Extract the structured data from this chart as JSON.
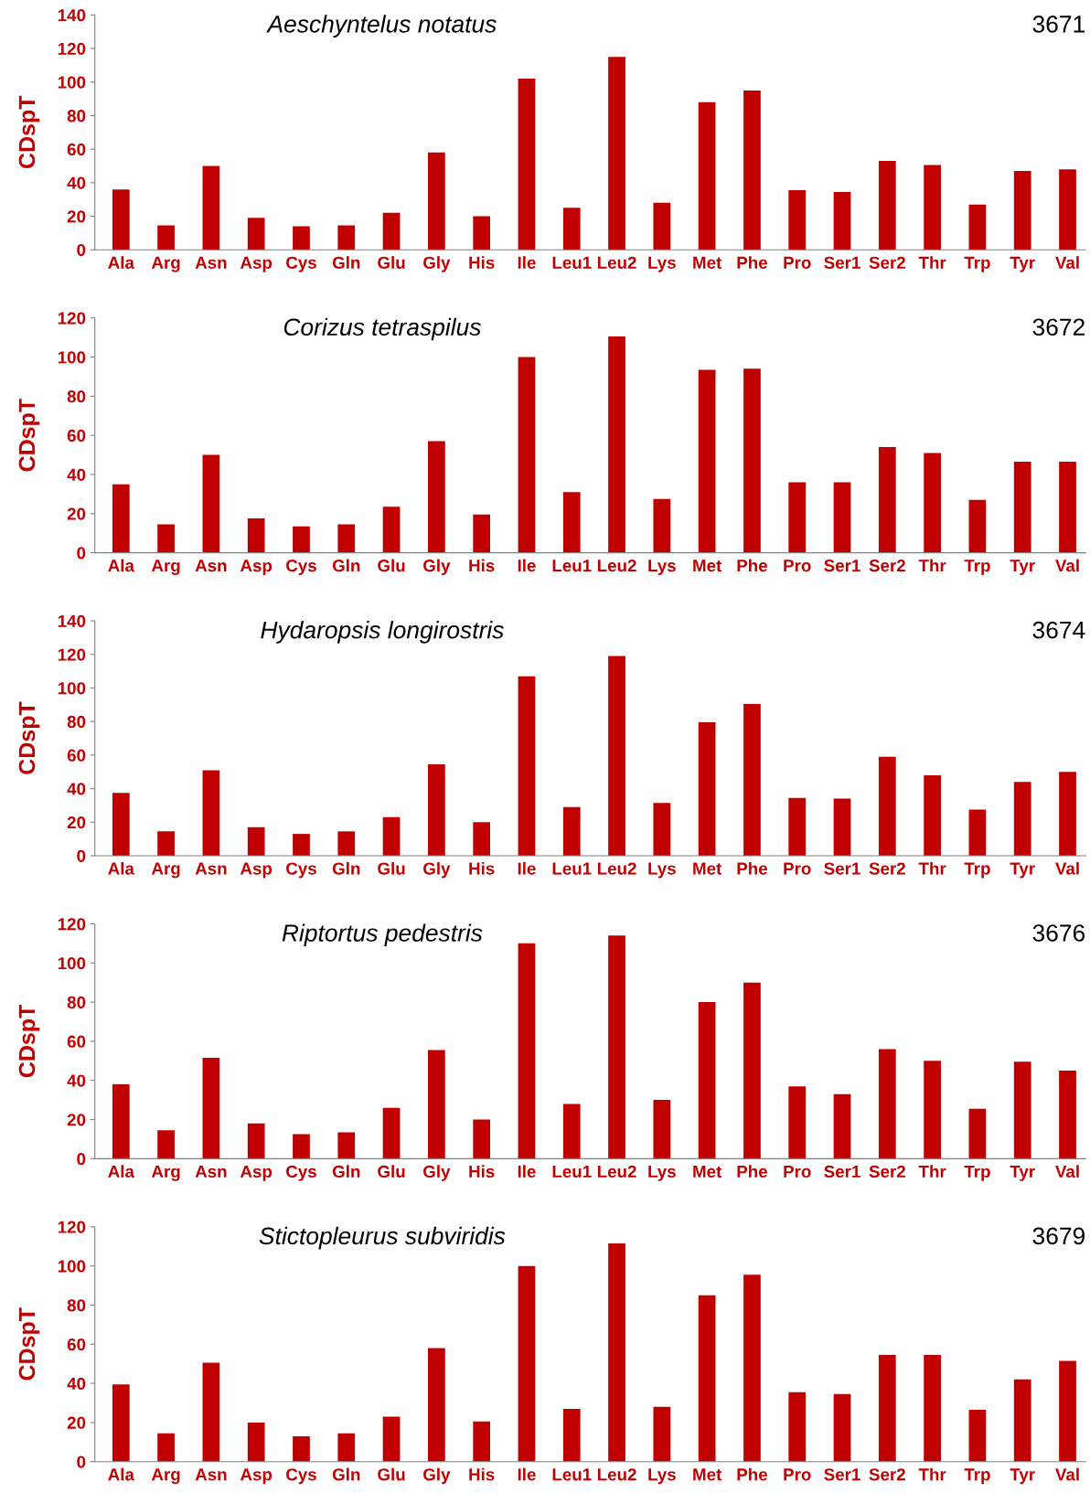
{
  "chart_data": [
    {
      "type": "bar",
      "title": "Aeschyntelus notatus",
      "ylabel": "CDspT",
      "annotations": [
        "3671"
      ],
      "color": "#c00000",
      "ylim": [
        0,
        140
      ],
      "yticks": [
        0,
        20,
        40,
        60,
        80,
        100,
        120,
        140
      ],
      "grid": false,
      "legend": false,
      "categories": [
        "Ala",
        "Arg",
        "Asn",
        "Asp",
        "Cys",
        "Gln",
        "Glu",
        "Gly",
        "His",
        "Ile",
        "Leu1",
        "Leu2",
        "Lys",
        "Met",
        "Phe",
        "Pro",
        "Ser1",
        "Ser2",
        "Thr",
        "Trp",
        "Tyr",
        "Val"
      ],
      "values": [
        36,
        14.5,
        50,
        19,
        14,
        14.5,
        22,
        58,
        20,
        102,
        25,
        115,
        28,
        88,
        95,
        35.5,
        34.5,
        53,
        50.5,
        27,
        47,
        48
      ]
    },
    {
      "type": "bar",
      "title": "Corizus tetraspilus",
      "ylabel": "CDspT",
      "annotations": [
        "3672"
      ],
      "color": "#c00000",
      "ylim": [
        0,
        120
      ],
      "yticks": [
        0,
        20,
        40,
        60,
        80,
        100,
        120
      ],
      "grid": false,
      "legend": false,
      "categories": [
        "Ala",
        "Arg",
        "Asn",
        "Asp",
        "Cys",
        "Gln",
        "Glu",
        "Gly",
        "His",
        "Ile",
        "Leu1",
        "Leu2",
        "Lys",
        "Met",
        "Phe",
        "Pro",
        "Ser1",
        "Ser2",
        "Thr",
        "Trp",
        "Tyr",
        "Val"
      ],
      "values": [
        35,
        14.5,
        50,
        17.5,
        13.5,
        14.5,
        23.5,
        57,
        19.5,
        100,
        31,
        110.5,
        27.5,
        93.5,
        94,
        36,
        36,
        54,
        51,
        27,
        46.5,
        46.5
      ]
    },
    {
      "type": "bar",
      "title": "Hydaropsis longirostris",
      "ylabel": "CDspT",
      "annotations": [
        "3674"
      ],
      "color": "#c00000",
      "ylim": [
        0,
        140
      ],
      "yticks": [
        0,
        20,
        40,
        60,
        80,
        100,
        120,
        140
      ],
      "grid": false,
      "legend": false,
      "categories": [
        "Ala",
        "Arg",
        "Asn",
        "Asp",
        "Cys",
        "Gln",
        "Glu",
        "Gly",
        "His",
        "Ile",
        "Leu1",
        "Leu2",
        "Lys",
        "Met",
        "Phe",
        "Pro",
        "Ser1",
        "Ser2",
        "Thr",
        "Trp",
        "Tyr",
        "Val"
      ],
      "values": [
        37.5,
        14.5,
        51,
        17,
        13,
        14.5,
        23,
        54.5,
        20,
        107,
        29,
        119,
        31.5,
        79.5,
        90.5,
        34.5,
        34,
        59,
        48,
        27.5,
        44,
        50
      ]
    },
    {
      "type": "bar",
      "title": "Riptortus pedestris",
      "ylabel": "CDspT",
      "annotations": [
        "3676"
      ],
      "color": "#c00000",
      "ylim": [
        0,
        120
      ],
      "yticks": [
        0,
        20,
        40,
        60,
        80,
        100,
        120
      ],
      "grid": false,
      "legend": false,
      "categories": [
        "Ala",
        "Arg",
        "Asn",
        "Asp",
        "Cys",
        "Gln",
        "Glu",
        "Gly",
        "His",
        "Ile",
        "Leu1",
        "Leu2",
        "Lys",
        "Met",
        "Phe",
        "Pro",
        "Ser1",
        "Ser2",
        "Thr",
        "Trp",
        "Tyr",
        "Val"
      ],
      "values": [
        38,
        14.5,
        51.5,
        18,
        12.5,
        13.5,
        26,
        55.5,
        20,
        110,
        28,
        114,
        30,
        80,
        90,
        37,
        33,
        56,
        50,
        25.5,
        49.5,
        45
      ]
    },
    {
      "type": "bar",
      "title": "Stictopleurus subviridis",
      "ylabel": "CDspT",
      "annotations": [
        "3679"
      ],
      "color": "#c00000",
      "ylim": [
        0,
        120
      ],
      "yticks": [
        0,
        20,
        40,
        60,
        80,
        100,
        120
      ],
      "grid": false,
      "legend": false,
      "categories": [
        "Ala",
        "Arg",
        "Asn",
        "Asp",
        "Cys",
        "Gln",
        "Glu",
        "Gly",
        "His",
        "Ile",
        "Leu1",
        "Leu2",
        "Lys",
        "Met",
        "Phe",
        "Pro",
        "Ser1",
        "Ser2",
        "Thr",
        "Trp",
        "Tyr",
        "Val"
      ],
      "values": [
        39.5,
        14.5,
        50.5,
        20,
        13,
        14.5,
        23,
        58,
        20.5,
        100,
        27,
        111.5,
        28,
        85,
        95.5,
        35.5,
        34.5,
        54.5,
        54.5,
        26.5,
        42,
        51.5
      ]
    }
  ]
}
